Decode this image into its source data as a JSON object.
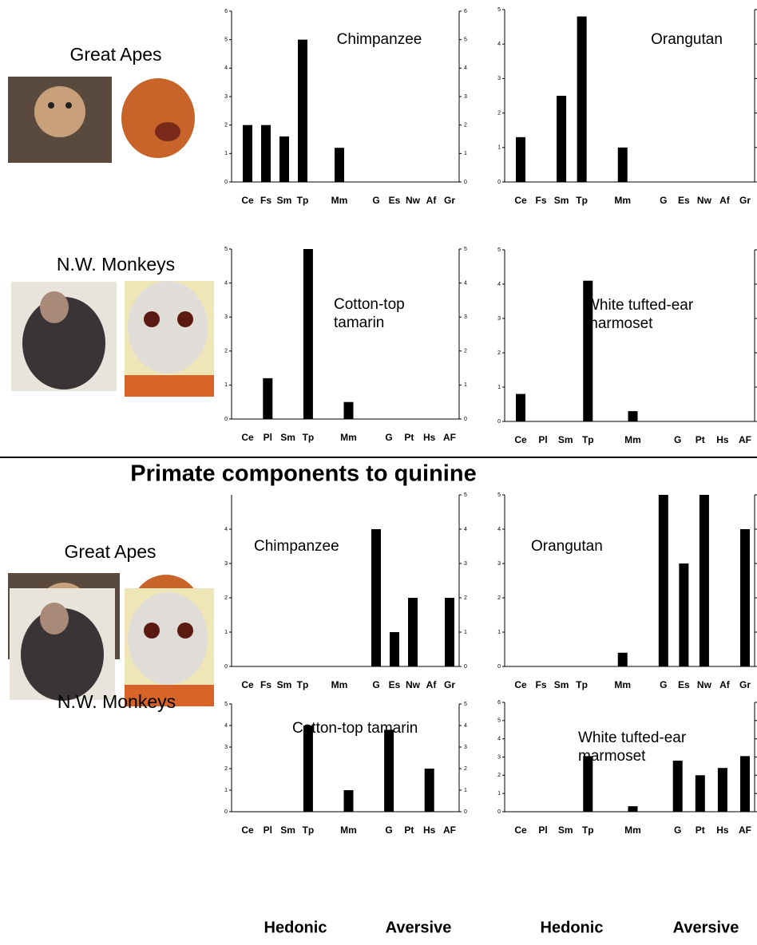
{
  "labels": {
    "group_labels": [
      "Great Apes",
      "N.W. Monkeys",
      "Great Apes",
      "N.W. Monkeys"
    ],
    "section_title": "Primate components to quinine",
    "axis_groups": [
      "Hedonic",
      "Aversive",
      "Hedonic",
      "Aversive"
    ]
  },
  "chart_data": [
    {
      "type": "bar",
      "title": [
        "Chimpanzee"
      ],
      "categories": [
        "Ce",
        "Fs",
        "Sm",
        "Tp",
        null,
        "Mm",
        null,
        "G",
        "Es",
        "Nw",
        "Af",
        "Gr"
      ],
      "values": [
        2,
        2,
        1.6,
        5,
        null,
        1.2,
        null,
        0,
        0,
        0,
        0,
        0
      ],
      "color": "#000000",
      "ylim": [
        0,
        6
      ],
      "yticks": [
        0,
        1,
        2,
        3,
        4,
        5,
        6
      ],
      "y2lim": [
        0,
        6
      ],
      "y2ticks": [
        0,
        1,
        2,
        3,
        4,
        5,
        6
      ]
    },
    {
      "type": "bar",
      "title": [
        "Orangutan"
      ],
      "categories": [
        "Ce",
        "Fs",
        "Sm",
        "Tp",
        null,
        "Mm",
        null,
        "G",
        "Es",
        "Nw",
        "Af",
        "Gr"
      ],
      "values": [
        1.3,
        0,
        2.5,
        4.8,
        null,
        1,
        null,
        0,
        0,
        0,
        0,
        0
      ],
      "color": "#000000",
      "ylim": [
        0,
        5
      ],
      "yticks": [
        0,
        1,
        2,
        3,
        4,
        5
      ],
      "y2lim": [
        0,
        5
      ],
      "y2ticks": [
        0,
        1,
        2,
        3,
        4,
        5
      ]
    },
    {
      "type": "bar",
      "title": [
        "Cotton-top",
        "tamarin"
      ],
      "categories": [
        "Ce",
        "Pl",
        "Sm",
        "Tp",
        null,
        "Mm",
        null,
        "G",
        "Pt",
        "Hs",
        "AF"
      ],
      "values": [
        0,
        1.2,
        0,
        5,
        null,
        0.5,
        null,
        0,
        0,
        0,
        0
      ],
      "color": "#000000",
      "ylim": [
        0,
        5
      ],
      "yticks": [
        0,
        1,
        2,
        3,
        4,
        5
      ],
      "y2lim": [
        0,
        5
      ],
      "y2ticks": [
        0,
        1,
        2,
        3,
        4,
        5
      ]
    },
    {
      "type": "bar",
      "title": [
        "White tufted-ear",
        "marmoset"
      ],
      "categories": [
        "Ce",
        "Pl",
        "Sm",
        "Tp",
        null,
        "Mm",
        null,
        "G",
        "Pt",
        "Hs",
        "AF"
      ],
      "values": [
        0.8,
        0,
        0,
        4.1,
        null,
        0.3,
        null,
        0,
        0,
        0,
        0
      ],
      "color": "#000000",
      "ylim": [
        0,
        5
      ],
      "yticks": [
        0,
        1,
        2,
        3,
        4,
        5
      ],
      "y2lim": [
        0,
        5
      ],
      "y2ticks": [
        0,
        1,
        2,
        3,
        4,
        5
      ]
    },
    {
      "type": "bar",
      "title": [
        "Chimpanzee"
      ],
      "categories": [
        "Ce",
        "Fs",
        "Sm",
        "Tp",
        null,
        "Mm",
        null,
        "G",
        "Es",
        "Nw",
        "Af",
        "Gr"
      ],
      "values": [
        0,
        0,
        0,
        0,
        null,
        0,
        null,
        4,
        1,
        2,
        0,
        2
      ],
      "color": "#000000",
      "ylim": [
        0,
        5
      ],
      "yticks": [
        0,
        1,
        2,
        3,
        4
      ],
      "y2lim": [
        0,
        5
      ],
      "y2ticks": [
        0,
        1,
        2,
        3,
        4,
        5
      ]
    },
    {
      "type": "bar",
      "title": [
        "Orangutan"
      ],
      "categories": [
        "Ce",
        "Fs",
        "Sm",
        "Tp",
        null,
        "Mm",
        null,
        "G",
        "Es",
        "Nw",
        "Af",
        "Gr"
      ],
      "values": [
        0,
        0,
        0,
        0,
        null,
        0.4,
        null,
        5,
        3,
        5,
        0,
        4
      ],
      "color": "#000000",
      "ylim": [
        0,
        5
      ],
      "yticks": [
        0,
        1,
        2,
        3,
        4,
        5
      ],
      "y2lim": [
        0,
        5
      ],
      "y2ticks": [
        0,
        1,
        2,
        3,
        4,
        5
      ]
    },
    {
      "type": "bar",
      "title": [
        "Cotton-top tamarin"
      ],
      "categories": [
        "Ce",
        "Pl",
        "Sm",
        "Tp",
        null,
        "Mm",
        null,
        "G",
        "Pt",
        "Hs",
        "AF"
      ],
      "values": [
        0,
        0,
        0,
        4,
        null,
        1,
        null,
        3.8,
        0,
        2,
        0
      ],
      "color": "#000000",
      "ylim": [
        0,
        5
      ],
      "yticks": [
        0,
        1,
        2,
        3,
        4,
        5
      ],
      "y2lim": [
        0,
        5
      ],
      "y2ticks": [
        0,
        1,
        2,
        3,
        4,
        5
      ]
    },
    {
      "type": "bar",
      "title": [
        "White tufted-ear",
        "marmoset"
      ],
      "categories": [
        "Ce",
        "Pl",
        "Sm",
        "Tp",
        null,
        "Mm",
        null,
        "G",
        "Pt",
        "Hs",
        "AF"
      ],
      "values": [
        0,
        0,
        0,
        3.05,
        null,
        0.3,
        null,
        2.8,
        2,
        2.4,
        3.05
      ],
      "color": "#000000",
      "ylim": [
        0,
        6
      ],
      "yticks": [
        0,
        1,
        2,
        3,
        4,
        5,
        6
      ],
      "y2lim": [
        0,
        6
      ],
      "y2ticks": [
        0,
        1,
        2,
        3,
        4,
        5,
        6
      ]
    }
  ]
}
